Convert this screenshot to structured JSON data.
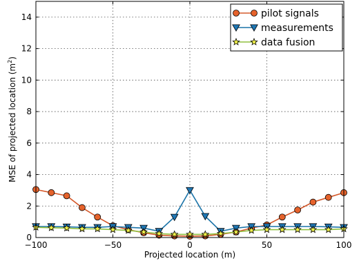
{
  "chart_data": {
    "type": "line",
    "xlabel": "Projected location (m)",
    "ylabel_main": "MSE of projected location (m",
    "ylabel_sup": "2",
    "ylabel_end": ")",
    "xlim": [
      -100,
      100
    ],
    "ylim": [
      0,
      15
    ],
    "xticks": [
      -100,
      -50,
      0,
      50,
      100
    ],
    "xtick_labels": [
      "−100",
      "−50",
      "0",
      "50",
      "100"
    ],
    "yticks": [
      0,
      2,
      4,
      6,
      8,
      10,
      12,
      14
    ],
    "ytick_labels": [
      "0",
      "2",
      "4",
      "6",
      "8",
      "10",
      "12",
      "14"
    ],
    "grid": true,
    "legend_position": "top-right",
    "x": [
      -100,
      -90,
      -80,
      -70,
      -60,
      -50,
      -40,
      -30,
      -20,
      -10,
      0,
      10,
      20,
      30,
      40,
      50,
      60,
      70,
      80,
      90,
      100
    ],
    "series": [
      {
        "name": "pilot signals",
        "marker": "circle",
        "color": "#e5622b",
        "line_color": "#d4582a",
        "values": [
          3.05,
          2.85,
          2.65,
          1.9,
          1.3,
          0.75,
          0.5,
          0.3,
          0.15,
          0.1,
          0.08,
          0.1,
          0.2,
          0.35,
          0.6,
          0.8,
          1.3,
          1.75,
          2.25,
          2.55,
          2.85
        ]
      },
      {
        "name": "measurements",
        "marker": "triangle-down",
        "color": "#1f77b4",
        "line_color": "#1a73a8",
        "values": [
          0.7,
          0.7,
          0.68,
          0.65,
          0.65,
          0.7,
          0.65,
          0.6,
          0.4,
          1.3,
          3.0,
          1.35,
          0.4,
          0.6,
          0.7,
          0.7,
          0.7,
          0.7,
          0.7,
          0.68,
          0.65
        ]
      },
      {
        "name": "data fusion",
        "marker": "star",
        "color": "#f2f24a",
        "line_color": "#8fbf3f",
        "values": [
          0.65,
          0.62,
          0.6,
          0.55,
          0.55,
          0.5,
          0.45,
          0.35,
          0.25,
          0.2,
          0.2,
          0.2,
          0.25,
          0.35,
          0.45,
          0.5,
          0.5,
          0.5,
          0.5,
          0.5,
          0.55
        ]
      }
    ]
  }
}
